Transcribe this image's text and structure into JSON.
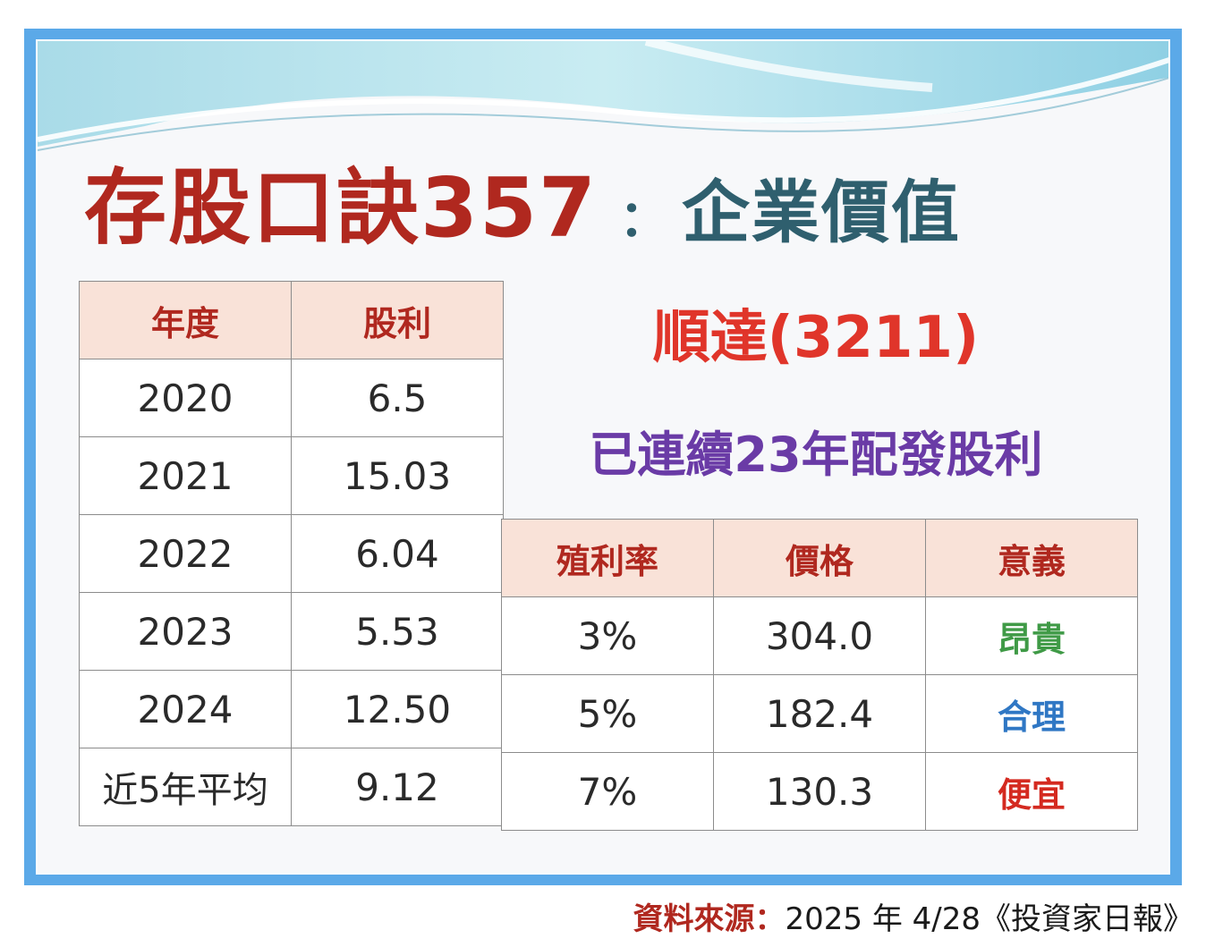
{
  "title": {
    "main": "存股口訣357",
    "colon": "：",
    "sub": "企業價值"
  },
  "company": "順達(3211)",
  "streak": "已連續23年配發股利",
  "dividend_table": {
    "headers": [
      "年度",
      "股利"
    ],
    "rows": [
      [
        "2020",
        "6.5"
      ],
      [
        "2021",
        "15.03"
      ],
      [
        "2022",
        "6.04"
      ],
      [
        "2023",
        "5.53"
      ],
      [
        "2024",
        "12.50"
      ],
      [
        "近5年平均",
        "9.12"
      ]
    ]
  },
  "valuation_table": {
    "headers": [
      "殖利率",
      "價格",
      "意義"
    ],
    "rows": [
      [
        "3%",
        "304.0",
        "昂貴"
      ],
      [
        "5%",
        "182.4",
        "合理"
      ],
      [
        "7%",
        "130.3",
        "便宜"
      ]
    ]
  },
  "source": {
    "label": "資料來源：",
    "value": "2025 年 4/28《投資家日報》"
  },
  "colors": {
    "frame": "#5ba9e8",
    "title_red": "#b0281f",
    "title_teal": "#2f5f6e",
    "header_bg": "#f9e2d8",
    "expensive": "#3f9a46",
    "fair": "#2f77c4",
    "cheap": "#d42a20",
    "streak_purple": "#6a3ba6"
  }
}
